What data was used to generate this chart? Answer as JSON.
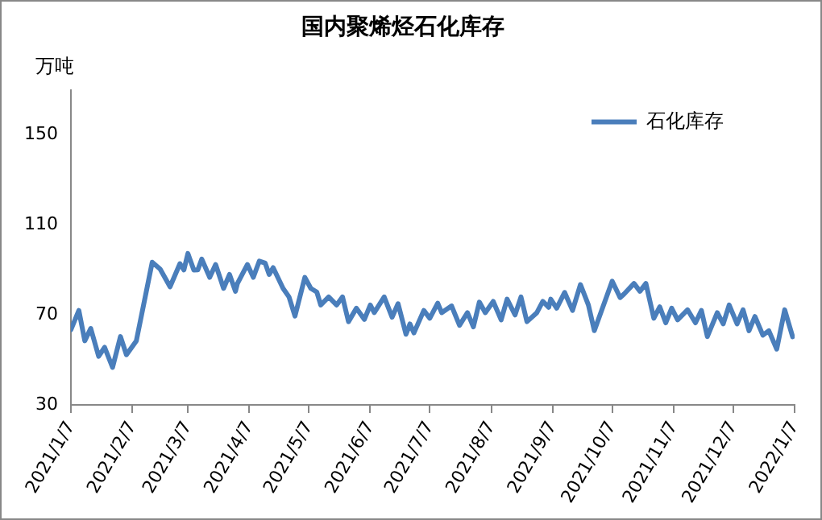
{
  "chart_data": {
    "type": "line",
    "title": "国内聚烯烃石化库存",
    "ylabel": "万吨",
    "x": [
      "2021-01-07",
      "2021-01-11",
      "2021-01-14",
      "2021-01-17",
      "2021-01-21",
      "2021-01-24",
      "2021-01-28",
      "2021-02-01",
      "2021-02-04",
      "2021-02-09",
      "2021-02-17",
      "2021-02-21",
      "2021-02-26",
      "2021-03-03",
      "2021-03-05",
      "2021-03-07",
      "2021-03-10",
      "2021-03-12",
      "2021-03-14",
      "2021-03-18",
      "2021-03-21",
      "2021-03-25",
      "2021-03-28",
      "2021-03-31",
      "2021-04-01",
      "2021-04-06",
      "2021-04-09",
      "2021-04-12",
      "2021-04-15",
      "2021-04-17",
      "2021-04-19",
      "2021-04-24",
      "2021-04-27",
      "2021-04-30",
      "2021-05-05",
      "2021-05-08",
      "2021-05-11",
      "2021-05-13",
      "2021-05-17",
      "2021-05-21",
      "2021-05-24",
      "2021-05-27",
      "2021-05-31",
      "2021-06-04",
      "2021-06-07",
      "2021-06-09",
      "2021-06-14",
      "2021-06-18",
      "2021-06-21",
      "2021-06-25",
      "2021-06-27",
      "2021-06-29",
      "2021-07-04",
      "2021-07-07",
      "2021-07-11",
      "2021-07-13",
      "2021-07-18",
      "2021-07-22",
      "2021-07-26",
      "2021-07-29",
      "2021-08-01",
      "2021-08-04",
      "2021-08-08",
      "2021-08-12",
      "2021-08-15",
      "2021-08-19",
      "2021-08-22",
      "2021-08-25",
      "2021-08-30",
      "2021-09-02",
      "2021-09-05",
      "2021-09-06",
      "2021-09-09",
      "2021-09-13",
      "2021-09-17",
      "2021-09-21",
      "2021-09-25",
      "2021-09-28",
      "2021-10-07",
      "2021-10-11",
      "2021-10-13",
      "2021-10-18",
      "2021-10-21",
      "2021-10-24",
      "2021-10-28",
      "2021-10-31",
      "2021-11-03",
      "2021-11-06",
      "2021-11-09",
      "2021-11-14",
      "2021-11-18",
      "2021-11-21",
      "2021-11-24",
      "2021-11-29",
      "2021-12-02",
      "2021-12-05",
      "2021-12-09",
      "2021-12-12",
      "2021-12-15",
      "2021-12-18",
      "2021-12-22",
      "2021-12-25",
      "2021-12-29",
      "2022-01-02",
      "2022-01-06"
    ],
    "series": [
      {
        "name": "石化库存",
        "color": "#4a7ebb",
        "values": [
          63.4,
          72,
          58.5,
          64,
          51.6,
          55.6,
          46.7,
          60.4,
          52.3,
          58.5,
          93.4,
          90.4,
          82.5,
          92.8,
          90,
          97.3,
          89.9,
          90,
          94.8,
          86.7,
          92.4,
          81.8,
          88,
          80.5,
          84,
          92.4,
          86.7,
          93.9,
          93,
          88,
          91,
          81.8,
          78,
          69.5,
          86.7,
          81.8,
          80.2,
          74.4,
          78,
          74.4,
          78,
          67,
          73,
          68,
          74.4,
          71,
          78,
          69,
          75,
          61.4,
          66,
          62,
          72,
          68.5,
          75.2,
          71,
          74,
          65.4,
          71,
          64.7,
          75.7,
          71,
          76,
          67.8,
          77,
          70,
          78,
          67,
          71,
          76,
          73.4,
          77,
          73,
          80,
          72,
          83.5,
          74.4,
          63,
          85,
          77.7,
          79.3,
          84,
          80.5,
          84,
          68.5,
          73.6,
          66.5,
          73,
          67.8,
          72.3,
          66.5,
          72,
          60.4,
          71,
          66,
          74.4,
          66,
          72.3,
          63,
          69.3,
          61,
          63,
          54.8,
          72.3,
          60.3
        ]
      }
    ],
    "xlim": [
      "2021-01-07",
      "2022-01-07"
    ],
    "xticks": [
      {
        "value": "2021-01-07",
        "label": "2021/1/7"
      },
      {
        "value": "2021-02-07",
        "label": "2021/2/7"
      },
      {
        "value": "2021-03-07",
        "label": "2021/3/7"
      },
      {
        "value": "2021-04-07",
        "label": "2021/4/7"
      },
      {
        "value": "2021-05-07",
        "label": "2021/5/7"
      },
      {
        "value": "2021-06-07",
        "label": "2021/6/7"
      },
      {
        "value": "2021-07-07",
        "label": "2021/7/7"
      },
      {
        "value": "2021-08-07",
        "label": "2021/8/7"
      },
      {
        "value": "2021-09-07",
        "label": "2021/9/7"
      },
      {
        "value": "2021-10-07",
        "label": "2021/10/7"
      },
      {
        "value": "2021-11-07",
        "label": "2021/11/7"
      },
      {
        "value": "2021-12-07",
        "label": "2021/12/7"
      },
      {
        "value": "2022-01-07",
        "label": "2022/1/7"
      }
    ],
    "ylim": [
      30,
      170
    ],
    "yticks": [
      30,
      70,
      110,
      150
    ],
    "grid": false,
    "legend": "top right",
    "marker": "none",
    "line_style": "solid"
  }
}
